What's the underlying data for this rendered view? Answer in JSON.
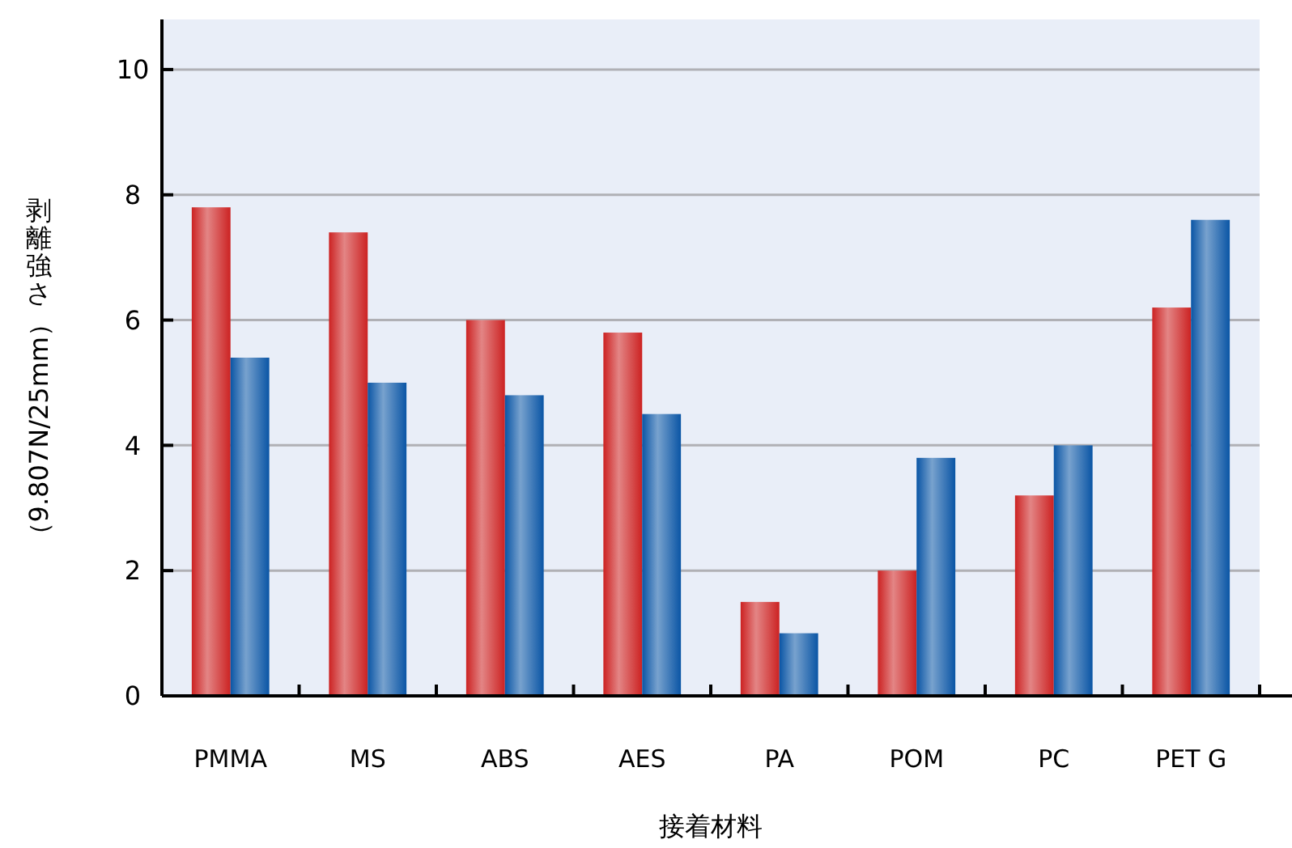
{
  "chart_data": {
    "type": "bar",
    "xlabel": "接着材料",
    "ylabel": "剥離強さ（9.807N/25mm）",
    "categories": [
      "PMMA",
      "MS",
      "ABS",
      "AES",
      "PA",
      "POM",
      "PC",
      "PET G"
    ],
    "series": [
      {
        "color": "#cc2222",
        "values": [
          7.8,
          7.4,
          6.0,
          5.8,
          1.5,
          2.0,
          3.2,
          6.2
        ]
      },
      {
        "color": "#0a55a5",
        "values": [
          5.4,
          5.0,
          4.8,
          4.5,
          1.0,
          3.8,
          4.0,
          7.6
        ]
      }
    ],
    "ylim": [
      0,
      10.8
    ],
    "yticks": [
      0,
      2,
      4,
      6,
      8,
      10
    ],
    "grid": "y"
  }
}
